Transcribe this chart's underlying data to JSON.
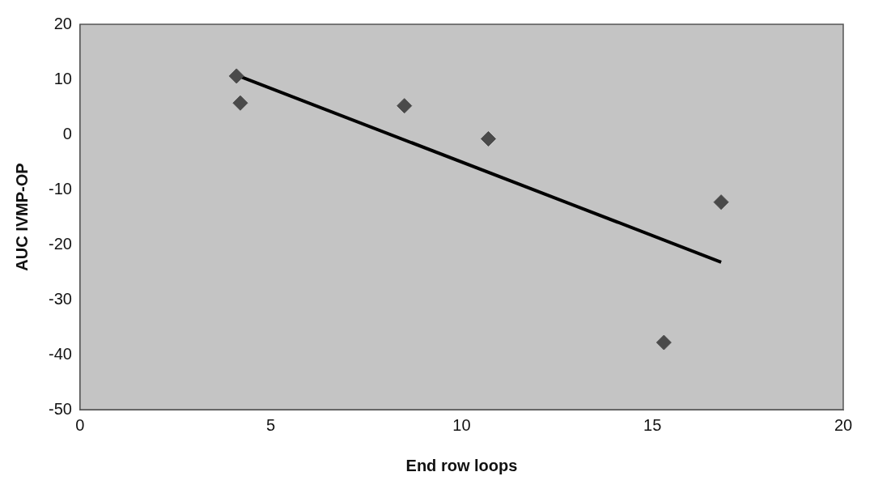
{
  "chart_data": {
    "type": "scatter",
    "xlabel": "End row loops",
    "ylabel": "AUC IVMP-OP",
    "xlim": [
      0,
      20
    ],
    "xticks": [
      0,
      5,
      10,
      15,
      20
    ],
    "ylim": [
      -50,
      20
    ],
    "yticks": [
      -50,
      -40,
      -30,
      -20,
      -10,
      0,
      10,
      20
    ],
    "grid": false,
    "legend": false,
    "marker": "diamond",
    "series": [
      {
        "color": "#4a4a4a",
        "x": [
          4.1,
          4.2,
          8.5,
          10.7,
          16.8,
          15.3
        ],
        "values": [
          10.6,
          5.7,
          5.2,
          -0.8,
          -12.3,
          -37.8
        ]
      },
      {
        "type": "line",
        "color": "#000000",
        "marker": "none",
        "x": [
          4.2,
          16.8
        ],
        "values": [
          10.5,
          -23.2
        ]
      }
    ]
  }
}
